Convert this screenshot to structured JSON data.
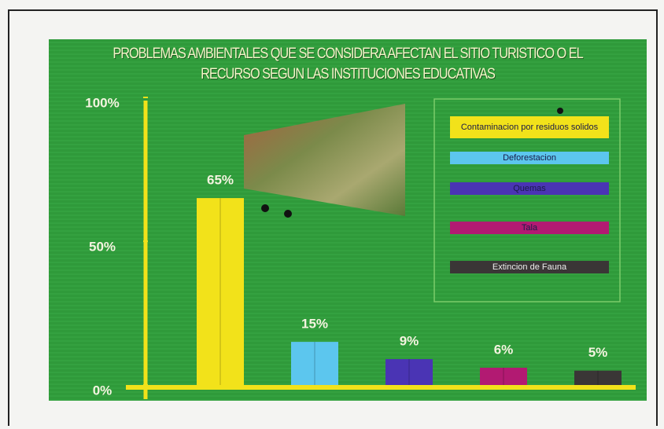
{
  "chart_data": {
    "type": "bar",
    "title": "PROBLEMAS AMBIENTALES QUE SE CONSIDERA AFECTAN EL SITIO TURISTICO O EL RECURSO SEGUN LAS INSTITUCIONES EDUCATIVAS",
    "categories": [
      "Contaminacion por residuos solidos",
      "Deforestacion",
      "Quemas",
      "Tala",
      "Extincion de Fauna"
    ],
    "values": [
      65,
      15,
      9,
      6,
      5
    ],
    "value_labels": [
      "65%",
      "15%",
      "9%",
      "6%",
      "5%"
    ],
    "colors": [
      "#f2e21a",
      "#5cc6ee",
      "#4a34b4",
      "#b21a72",
      "#3a3636"
    ],
    "ylim": [
      0,
      100
    ],
    "yticks": [
      {
        "value": 0,
        "label": "0%"
      },
      {
        "value": 50,
        "label": "50%"
      },
      {
        "value": 100,
        "label": "100%"
      }
    ],
    "legend": "right"
  }
}
